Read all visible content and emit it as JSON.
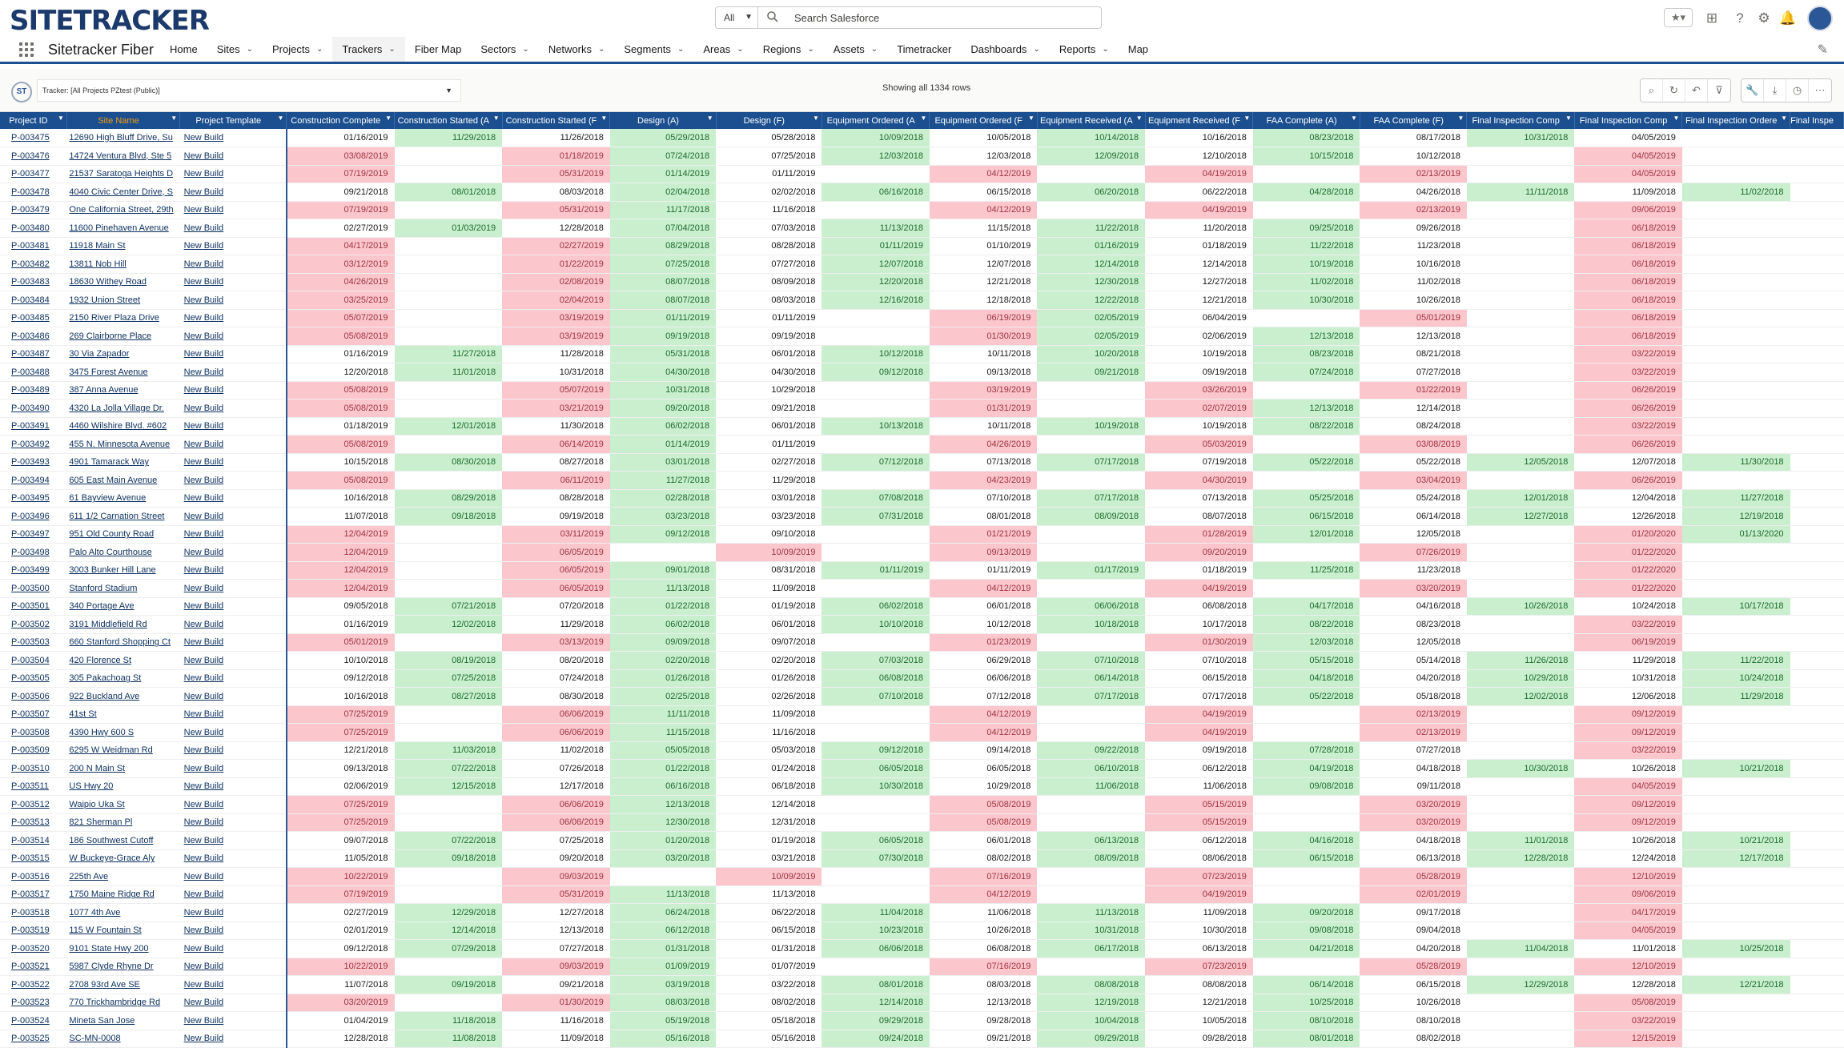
{
  "brand": "SITETRACKER",
  "search": {
    "scope": "All",
    "placeholder": "Search Salesforce"
  },
  "app_name": "Sitetracker Fiber",
  "nav": [
    {
      "label": "Home",
      "dd": false
    },
    {
      "label": "Sites",
      "dd": true
    },
    {
      "label": "Projects",
      "dd": true
    },
    {
      "label": "Trackers",
      "dd": true,
      "active": true
    },
    {
      "label": "Fiber Map",
      "dd": false
    },
    {
      "label": "Sectors",
      "dd": true
    },
    {
      "label": "Networks",
      "dd": true
    },
    {
      "label": "Segments",
      "dd": true
    },
    {
      "label": "Areas",
      "dd": true
    },
    {
      "label": "Regions",
      "dd": true
    },
    {
      "label": "Assets",
      "dd": true
    },
    {
      "label": "Timetracker",
      "dd": false
    },
    {
      "label": "Dashboards",
      "dd": true
    },
    {
      "label": "Reports",
      "dd": true
    },
    {
      "label": "Map",
      "dd": false
    }
  ],
  "tracker": {
    "logo": "ST",
    "selector": "Tracker: [All Projects PZtest (Public)]",
    "row_count": "Showing all 1334 rows"
  },
  "columns": [
    "Project ID",
    "Site Name",
    "Project Template",
    "Construction Complete",
    "Construction Started (A",
    "Construction Started (F",
    "Design (A)",
    "Design (F)",
    "Equipment Ordered (A",
    "Equipment Ordered (F",
    "Equipment Received (A",
    "Equipment Received (F",
    "FAA Complete (A)",
    "FAA Complete (F)",
    "Final Inspection Comp",
    "Final Inspection Comp",
    "Final Inspection Ordere",
    "Final Inspe"
  ],
  "rows": [
    [
      "P-003475",
      "12690 High Bluff Drive, Su",
      "New Build",
      "01/16/2019",
      "11/29/2018",
      "11/26/2018",
      "05/29/2018",
      "05/28/2018",
      "10/09/2018",
      "10/05/2018",
      "10/14/2018",
      "10/16/2018",
      "08/23/2018",
      "08/17/2018",
      "10/31/2018",
      "04/05/2019",
      "",
      ""
    ],
    [
      "P-003476",
      "14724 Ventura Blvd, Ste 5",
      "New Build",
      "03/08/2019",
      "",
      "01/18/2019",
      "07/24/2018",
      "07/25/2018",
      "12/03/2018",
      "12/03/2018",
      "12/09/2018",
      "12/10/2018",
      "10/15/2018",
      "10/12/2018",
      "",
      "04/05/2019",
      "",
      ""
    ],
    [
      "P-003477",
      "21537 Saratoga Heights D",
      "New Build",
      "07/19/2019",
      "",
      "05/31/2019",
      "01/14/2019",
      "01/11/2019",
      "",
      "04/12/2019",
      "",
      "04/19/2019",
      "",
      "02/13/2019",
      "",
      "04/05/2019",
      "",
      ""
    ],
    [
      "P-003478",
      "4040 Civic Center Drive, S",
      "New Build",
      "09/21/2018",
      "08/01/2018",
      "08/03/2018",
      "02/04/2018",
      "02/02/2018",
      "06/16/2018",
      "06/15/2018",
      "06/20/2018",
      "06/22/2018",
      "04/28/2018",
      "04/26/2018",
      "11/11/2018",
      "11/09/2018",
      "11/02/2018",
      ""
    ],
    [
      "P-003479",
      "One California Street, 29th",
      "New Build",
      "07/19/2019",
      "",
      "05/31/2019",
      "11/17/2018",
      "11/16/2018",
      "",
      "04/12/2019",
      "",
      "04/19/2019",
      "",
      "02/13/2019",
      "",
      "09/06/2019",
      "",
      ""
    ],
    [
      "P-003480",
      "11600 Pinehaven Avenue",
      "New Build",
      "02/27/2019",
      "01/03/2019",
      "12/28/2018",
      "07/04/2018",
      "07/03/2018",
      "11/13/2018",
      "11/15/2018",
      "11/22/2018",
      "11/20/2018",
      "09/25/2018",
      "09/26/2018",
      "",
      "06/18/2019",
      "",
      ""
    ],
    [
      "P-003481",
      "11918 Main St",
      "New Build",
      "04/17/2019",
      "",
      "02/27/2019",
      "08/29/2018",
      "08/28/2018",
      "01/11/2019",
      "01/10/2019",
      "01/16/2019",
      "01/18/2019",
      "11/22/2018",
      "11/23/2018",
      "",
      "06/18/2019",
      "",
      ""
    ],
    [
      "P-003482",
      "13811 Nob Hill",
      "New Build",
      "03/12/2019",
      "",
      "01/22/2019",
      "07/25/2018",
      "07/27/2018",
      "12/07/2018",
      "12/07/2018",
      "12/14/2018",
      "12/14/2018",
      "10/19/2018",
      "10/16/2018",
      "",
      "06/18/2019",
      "",
      ""
    ],
    [
      "P-003483",
      "18630 Withey Road",
      "New Build",
      "04/26/2019",
      "",
      "02/08/2019",
      "08/07/2018",
      "08/09/2018",
      "12/20/2018",
      "12/21/2018",
      "12/30/2018",
      "12/27/2018",
      "11/02/2018",
      "11/02/2018",
      "",
      "06/18/2019",
      "",
      ""
    ],
    [
      "P-003484",
      "1932 Union Street",
      "New Build",
      "03/25/2019",
      "",
      "02/04/2019",
      "08/07/2018",
      "08/03/2018",
      "12/16/2018",
      "12/18/2018",
      "12/22/2018",
      "12/21/2018",
      "10/30/2018",
      "10/26/2018",
      "",
      "06/18/2019",
      "",
      ""
    ],
    [
      "P-003485",
      "2150 River Plaza Drive",
      "New Build",
      "05/07/2019",
      "",
      "03/19/2019",
      "01/11/2019",
      "01/11/2019",
      "",
      "06/19/2019",
      "02/05/2019",
      "06/04/2019",
      "",
      "05/01/2019",
      "",
      "06/18/2019",
      "",
      ""
    ],
    [
      "P-003486",
      "269 Clairborne Place",
      "New Build",
      "05/08/2019",
      "",
      "03/19/2019",
      "09/19/2018",
      "09/19/2018",
      "",
      "01/30/2019",
      "02/05/2019",
      "02/06/2019",
      "12/13/2018",
      "12/13/2018",
      "",
      "06/18/2019",
      "",
      ""
    ],
    [
      "P-003487",
      "30 Via Zapador",
      "New Build",
      "01/16/2019",
      "11/27/2018",
      "11/28/2018",
      "05/31/2018",
      "06/01/2018",
      "10/12/2018",
      "10/11/2018",
      "10/20/2018",
      "10/19/2018",
      "08/23/2018",
      "08/21/2018",
      "",
      "03/22/2019",
      "",
      ""
    ],
    [
      "P-003488",
      "3475 Forest Avenue",
      "New Build",
      "12/20/2018",
      "11/01/2018",
      "10/31/2018",
      "04/30/2018",
      "04/30/2018",
      "09/12/2018",
      "09/13/2018",
      "09/21/2018",
      "09/19/2018",
      "07/24/2018",
      "07/27/2018",
      "",
      "03/22/2019",
      "",
      ""
    ],
    [
      "P-003489",
      "387 Anna Avenue",
      "New Build",
      "05/08/2019",
      "",
      "05/07/2019",
      "10/31/2018",
      "10/29/2018",
      "",
      "03/19/2019",
      "",
      "03/26/2019",
      "",
      "01/22/2019",
      "",
      "06/26/2019",
      "",
      ""
    ],
    [
      "P-003490",
      "4320 La Jolla Village Dr.",
      "New Build",
      "05/08/2019",
      "",
      "03/21/2019",
      "09/20/2018",
      "09/21/2018",
      "",
      "01/31/2019",
      "",
      "02/07/2019",
      "12/13/2018",
      "12/14/2018",
      "",
      "06/26/2019",
      "",
      ""
    ],
    [
      "P-003491",
      "4460 Wilshire Blvd. #602",
      "New Build",
      "01/18/2019",
      "12/01/2018",
      "11/30/2018",
      "06/02/2018",
      "06/01/2018",
      "10/13/2018",
      "10/11/2018",
      "10/19/2018",
      "10/19/2018",
      "08/22/2018",
      "08/24/2018",
      "",
      "03/22/2019",
      "",
      ""
    ],
    [
      "P-003492",
      "455 N. Minnesota Avenue",
      "New Build",
      "05/08/2019",
      "",
      "06/14/2019",
      "01/14/2019",
      "01/11/2019",
      "",
      "04/26/2019",
      "",
      "05/03/2019",
      "",
      "03/08/2019",
      "",
      "06/26/2019",
      "",
      ""
    ],
    [
      "P-003493",
      "4901 Tamarack Way",
      "New Build",
      "10/15/2018",
      "08/30/2018",
      "08/27/2018",
      "03/01/2018",
      "02/27/2018",
      "07/12/2018",
      "07/13/2018",
      "07/17/2018",
      "07/19/2018",
      "05/22/2018",
      "05/22/2018",
      "12/05/2018",
      "12/07/2018",
      "11/30/2018",
      ""
    ],
    [
      "P-003494",
      "605 East Main Avenue",
      "New Build",
      "05/08/2019",
      "",
      "06/11/2019",
      "11/27/2018",
      "11/29/2018",
      "",
      "04/23/2019",
      "",
      "04/30/2019",
      "",
      "03/04/2019",
      "",
      "06/26/2019",
      "",
      ""
    ],
    [
      "P-003495",
      "61 Bayview Avenue",
      "New Build",
      "10/16/2018",
      "08/29/2018",
      "08/28/2018",
      "02/28/2018",
      "03/01/2018",
      "07/08/2018",
      "07/10/2018",
      "07/17/2018",
      "07/13/2018",
      "05/25/2018",
      "05/24/2018",
      "12/01/2018",
      "12/04/2018",
      "11/27/2018",
      ""
    ],
    [
      "P-003496",
      "611 1/2 Carnation Street",
      "New Build",
      "11/07/2018",
      "09/18/2018",
      "09/19/2018",
      "03/23/2018",
      "03/23/2018",
      "07/31/2018",
      "08/01/2018",
      "08/09/2018",
      "08/07/2018",
      "06/15/2018",
      "06/14/2018",
      "12/27/2018",
      "12/26/2018",
      "12/19/2018",
      ""
    ],
    [
      "P-003497",
      "951 Old County Road",
      "New Build",
      "12/04/2019",
      "",
      "03/11/2019",
      "09/12/2018",
      "09/10/2018",
      "",
      "01/21/2019",
      "",
      "01/28/2019",
      "12/01/2018",
      "12/05/2018",
      "",
      "01/20/2020",
      "01/13/2020",
      ""
    ],
    [
      "P-003498",
      "Palo Alto Courthouse",
      "New Build",
      "12/04/2019",
      "",
      "06/05/2019",
      "",
      "10/09/2019",
      "",
      "09/13/2019",
      "",
      "09/20/2019",
      "",
      "07/26/2019",
      "",
      "01/22/2020",
      "",
      ""
    ],
    [
      "P-003499",
      "3003 Bunker Hill Lane",
      "New Build",
      "12/04/2019",
      "",
      "06/05/2019",
      "09/01/2018",
      "08/31/2018",
      "01/11/2019",
      "01/11/2019",
      "01/17/2019",
      "01/18/2019",
      "11/25/2018",
      "11/23/2018",
      "",
      "01/22/2020",
      "",
      ""
    ],
    [
      "P-003500",
      "Stanford Stadium",
      "New Build",
      "12/04/2019",
      "",
      "06/05/2019",
      "11/13/2018",
      "11/09/2018",
      "",
      "04/12/2019",
      "",
      "04/19/2019",
      "",
      "03/20/2019",
      "",
      "01/22/2020",
      "",
      ""
    ],
    [
      "P-003501",
      "340 Portage Ave",
      "New Build",
      "09/05/2018",
      "07/21/2018",
      "07/20/2018",
      "01/22/2018",
      "01/19/2018",
      "06/02/2018",
      "06/01/2018",
      "06/06/2018",
      "06/08/2018",
      "04/17/2018",
      "04/16/2018",
      "10/26/2018",
      "10/24/2018",
      "10/17/2018",
      ""
    ],
    [
      "P-003502",
      "3191 Middlefield Rd",
      "New Build",
      "01/16/2019",
      "12/02/2018",
      "11/29/2018",
      "06/02/2018",
      "06/01/2018",
      "10/10/2018",
      "10/12/2018",
      "10/18/2018",
      "10/17/2018",
      "08/22/2018",
      "08/23/2018",
      "",
      "03/22/2019",
      "",
      ""
    ],
    [
      "P-003503",
      "660 Stanford Shopping Ct",
      "New Build",
      "05/01/2019",
      "",
      "03/13/2019",
      "09/09/2018",
      "09/07/2018",
      "",
      "01/23/2019",
      "",
      "01/30/2019",
      "12/03/2018",
      "12/05/2018",
      "",
      "06/19/2019",
      "",
      ""
    ],
    [
      "P-003504",
      "420 Florence St",
      "New Build",
      "10/10/2018",
      "08/19/2018",
      "08/20/2018",
      "02/20/2018",
      "02/20/2018",
      "07/03/2018",
      "06/29/2018",
      "07/10/2018",
      "07/10/2018",
      "05/15/2018",
      "05/14/2018",
      "11/26/2018",
      "11/29/2018",
      "11/22/2018",
      ""
    ],
    [
      "P-003505",
      "305 Pakachoag St",
      "New Build",
      "09/12/2018",
      "07/25/2018",
      "07/24/2018",
      "01/26/2018",
      "01/26/2018",
      "06/08/2018",
      "06/06/2018",
      "06/14/2018",
      "06/15/2018",
      "04/18/2018",
      "04/20/2018",
      "10/29/2018",
      "10/31/2018",
      "10/24/2018",
      ""
    ],
    [
      "P-003506",
      "922 Buckland Ave",
      "New Build",
      "10/16/2018",
      "08/27/2018",
      "08/30/2018",
      "02/25/2018",
      "02/26/2018",
      "07/10/2018",
      "07/12/2018",
      "07/17/2018",
      "07/17/2018",
      "05/22/2018",
      "05/18/2018",
      "12/02/2018",
      "12/06/2018",
      "11/29/2018",
      ""
    ],
    [
      "P-003507",
      "41st St",
      "New Build",
      "07/25/2019",
      "",
      "06/06/2019",
      "11/11/2018",
      "11/09/2018",
      "",
      "04/12/2019",
      "",
      "04/19/2019",
      "",
      "02/13/2019",
      "",
      "09/12/2019",
      "",
      ""
    ],
    [
      "P-003508",
      "4390 Hwy 600 S",
      "New Build",
      "07/25/2019",
      "",
      "06/06/2019",
      "11/15/2018",
      "11/16/2018",
      "",
      "04/12/2019",
      "",
      "04/19/2019",
      "",
      "02/13/2019",
      "",
      "09/12/2019",
      "",
      ""
    ],
    [
      "P-003509",
      "6295 W Weidman Rd",
      "New Build",
      "12/21/2018",
      "11/03/2018",
      "11/02/2018",
      "05/05/2018",
      "05/03/2018",
      "09/12/2018",
      "09/14/2018",
      "09/22/2018",
      "09/19/2018",
      "07/28/2018",
      "07/27/2018",
      "",
      "03/22/2019",
      "",
      ""
    ],
    [
      "P-003510",
      "200 N Main St",
      "New Build",
      "09/13/2018",
      "07/22/2018",
      "07/26/2018",
      "01/22/2018",
      "01/24/2018",
      "06/05/2018",
      "06/05/2018",
      "06/10/2018",
      "06/12/2018",
      "04/19/2018",
      "04/18/2018",
      "10/30/2018",
      "10/26/2018",
      "10/21/2018",
      ""
    ],
    [
      "P-003511",
      "US Hwy 20",
      "New Build",
      "02/06/2019",
      "12/15/2018",
      "12/17/2018",
      "06/16/2018",
      "06/18/2018",
      "10/30/2018",
      "10/29/2018",
      "11/06/2018",
      "11/06/2018",
      "09/08/2018",
      "09/11/2018",
      "",
      "04/05/2019",
      "",
      ""
    ],
    [
      "P-003512",
      "Waipio Uka St",
      "New Build",
      "07/25/2019",
      "",
      "06/06/2019",
      "12/13/2018",
      "12/14/2018",
      "",
      "05/08/2019",
      "",
      "05/15/2019",
      "",
      "03/20/2019",
      "",
      "09/12/2019",
      "",
      ""
    ],
    [
      "P-003513",
      "821 Sherman Pl",
      "New Build",
      "07/25/2019",
      "",
      "06/06/2019",
      "12/30/2018",
      "12/31/2018",
      "",
      "05/08/2019",
      "",
      "05/15/2019",
      "",
      "03/20/2019",
      "",
      "09/12/2019",
      "",
      ""
    ],
    [
      "P-003514",
      "186 Southwest Cutoff",
      "New Build",
      "09/07/2018",
      "07/22/2018",
      "07/25/2018",
      "01/20/2018",
      "01/19/2018",
      "06/05/2018",
      "06/01/2018",
      "06/13/2018",
      "06/12/2018",
      "04/16/2018",
      "04/18/2018",
      "11/01/2018",
      "10/26/2018",
      "10/21/2018",
      ""
    ],
    [
      "P-003515",
      "W Buckeye-Grace Aly",
      "New Build",
      "11/05/2018",
      "09/18/2018",
      "09/20/2018",
      "03/20/2018",
      "03/21/2018",
      "07/30/2018",
      "08/02/2018",
      "08/09/2018",
      "08/06/2018",
      "06/15/2018",
      "06/13/2018",
      "12/28/2018",
      "12/24/2018",
      "12/17/2018",
      ""
    ],
    [
      "P-003516",
      "225th Ave",
      "New Build",
      "10/22/2019",
      "",
      "09/03/2019",
      "",
      "10/09/2019",
      "",
      "07/16/2019",
      "",
      "07/23/2019",
      "",
      "05/28/2019",
      "",
      "12/10/2019",
      "",
      ""
    ],
    [
      "P-003517",
      "1750 Maine Ridge Rd",
      "New Build",
      "07/19/2019",
      "",
      "05/31/2019",
      "11/13/2018",
      "11/13/2018",
      "",
      "04/12/2019",
      "",
      "04/19/2019",
      "",
      "02/01/2019",
      "",
      "09/06/2019",
      "",
      ""
    ],
    [
      "P-003518",
      "1077 4th Ave",
      "New Build",
      "02/27/2019",
      "12/29/2018",
      "12/27/2018",
      "06/24/2018",
      "06/22/2018",
      "11/04/2018",
      "11/06/2018",
      "11/13/2018",
      "11/09/2018",
      "09/20/2018",
      "09/17/2018",
      "",
      "04/17/2019",
      "",
      ""
    ],
    [
      "P-003519",
      "115 W Fountain St",
      "New Build",
      "02/01/2019",
      "12/14/2018",
      "12/13/2018",
      "06/12/2018",
      "06/15/2018",
      "10/23/2018",
      "10/26/2018",
      "10/31/2018",
      "10/30/2018",
      "09/08/2018",
      "09/04/2018",
      "",
      "04/05/2019",
      "",
      ""
    ],
    [
      "P-003520",
      "9101 State Hwy 200",
      "New Build",
      "09/12/2018",
      "07/29/2018",
      "07/27/2018",
      "01/31/2018",
      "01/31/2018",
      "06/06/2018",
      "06/08/2018",
      "06/17/2018",
      "06/13/2018",
      "04/21/2018",
      "04/20/2018",
      "11/04/2018",
      "11/01/2018",
      "10/25/2018",
      ""
    ],
    [
      "P-003521",
      "5987 Clyde Rhyne Dr",
      "New Build",
      "10/22/2019",
      "",
      "09/03/2019",
      "01/09/2019",
      "01/07/2019",
      "",
      "07/16/2019",
      "",
      "07/23/2019",
      "",
      "05/28/2019",
      "",
      "12/10/2019",
      "",
      ""
    ],
    [
      "P-003522",
      "2708 93rd Ave SE",
      "New Build",
      "11/07/2018",
      "09/19/2018",
      "09/21/2018",
      "03/19/2018",
      "03/22/2018",
      "08/01/2018",
      "08/03/2018",
      "08/08/2018",
      "08/08/2018",
      "06/14/2018",
      "06/15/2018",
      "12/29/2018",
      "12/28/2018",
      "12/21/2018",
      ""
    ],
    [
      "P-003523",
      "770 Trickhambridge Rd",
      "New Build",
      "03/20/2019",
      "",
      "01/30/2019",
      "08/03/2018",
      "08/02/2018",
      "12/14/2018",
      "12/13/2018",
      "12/19/2018",
      "12/21/2018",
      "10/25/2018",
      "10/26/2018",
      "",
      "05/08/2019",
      "",
      ""
    ],
    [
      "P-003524",
      "Mineta San Jose",
      "New Build",
      "01/04/2019",
      "11/18/2018",
      "11/16/2018",
      "05/19/2018",
      "05/18/2018",
      "09/29/2018",
      "09/28/2018",
      "10/04/2018",
      "10/05/2018",
      "08/10/2018",
      "08/10/2018",
      "",
      "03/22/2019",
      "",
      ""
    ],
    [
      "P-003525",
      "SC-MN-0008",
      "New Build",
      "12/28/2018",
      "11/08/2018",
      "11/09/2018",
      "05/16/2018",
      "05/16/2018",
      "09/24/2018",
      "09/21/2018",
      "09/29/2018",
      "09/28/2018",
      "08/01/2018",
      "08/02/2018",
      "",
      "12/15/2019",
      "",
      ""
    ]
  ]
}
